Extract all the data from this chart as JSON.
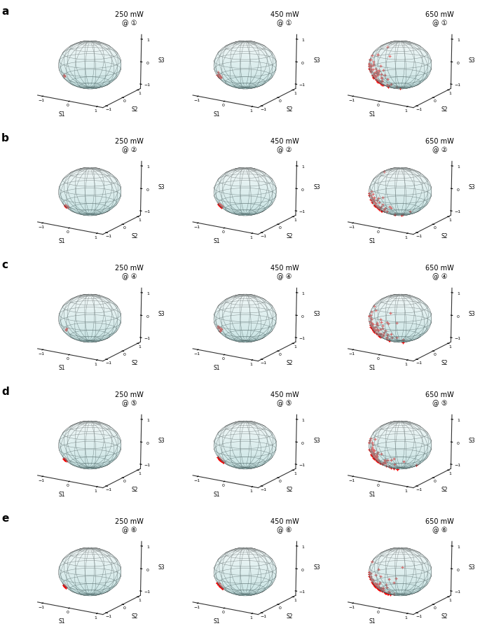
{
  "rows": [
    "a",
    "b",
    "c",
    "d",
    "e"
  ],
  "groups": [
    1,
    2,
    4,
    5,
    6
  ],
  "powers": [
    "250 mW",
    "450 mW",
    "650 mW"
  ],
  "scatter_counts": {
    "250": [
      3,
      8,
      3,
      15,
      12
    ],
    "450": [
      10,
      18,
      10,
      22,
      22
    ],
    "650": [
      70,
      50,
      70,
      70,
      70
    ]
  },
  "center_points": {
    "1": [
      -0.3,
      -0.6,
      -0.2
    ],
    "2": [
      -0.6,
      -0.4,
      -0.6
    ],
    "4": [
      -0.7,
      -0.2,
      -0.5
    ],
    "5": [
      -0.5,
      -0.5,
      -0.5
    ],
    "6": [
      -0.5,
      -0.5,
      -0.5
    ]
  },
  "spread_250": 0.03,
  "spread_450": 0.08,
  "spread_650": 0.38,
  "marker_color": "#ff0000",
  "figsize": [
    6.85,
    9.14
  ],
  "dpi": 100
}
